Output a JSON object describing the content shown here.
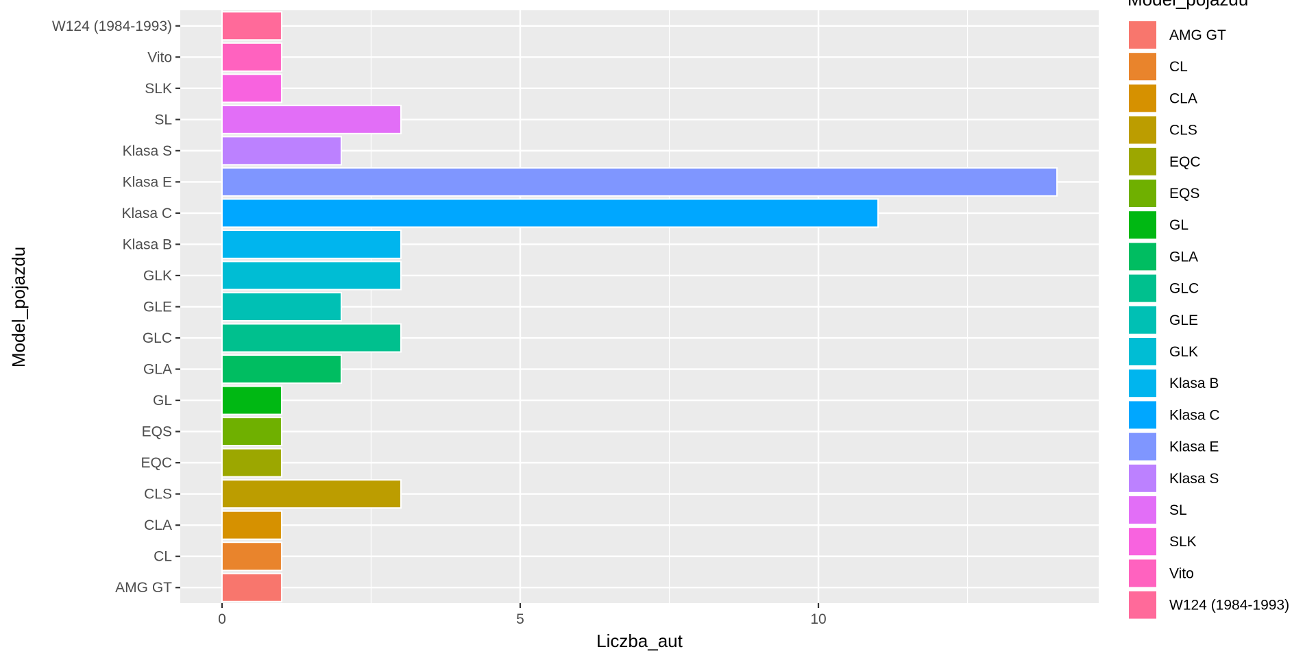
{
  "chart_data": {
    "type": "bar",
    "orientation": "horizontal",
    "xlabel": "Liczba_aut",
    "ylabel": "Model_pojazdu",
    "xlim": [
      -0.7,
      14.7
    ],
    "x_ticks": [
      0,
      5,
      10
    ],
    "grid": true,
    "legend_title": "Model_pojazdu",
    "legend_position": "right",
    "categories": [
      "AMG GT",
      "CL",
      "CLA",
      "CLS",
      "EQC",
      "EQS",
      "GL",
      "GLA",
      "GLC",
      "GLE",
      "GLK",
      "Klasa B",
      "Klasa C",
      "Klasa E",
      "Klasa S",
      "SL",
      "SLK",
      "Vito",
      "W124 (1984-1993)"
    ],
    "values": [
      1,
      1,
      1,
      3,
      1,
      1,
      1,
      2,
      3,
      2,
      3,
      3,
      11,
      14,
      2,
      3,
      1,
      1,
      1
    ],
    "colors": [
      "#F8766D",
      "#E9842C",
      "#D69100",
      "#BC9D00",
      "#9CA700",
      "#6FB000",
      "#00B813",
      "#00BD61",
      "#00C08E",
      "#00C0B4",
      "#00BDD4",
      "#00B5EE",
      "#00A7FF",
      "#7F96FF",
      "#BC81FF",
      "#E26EF7",
      "#F863DF",
      "#FF62BF",
      "#FF6A9A"
    ]
  }
}
